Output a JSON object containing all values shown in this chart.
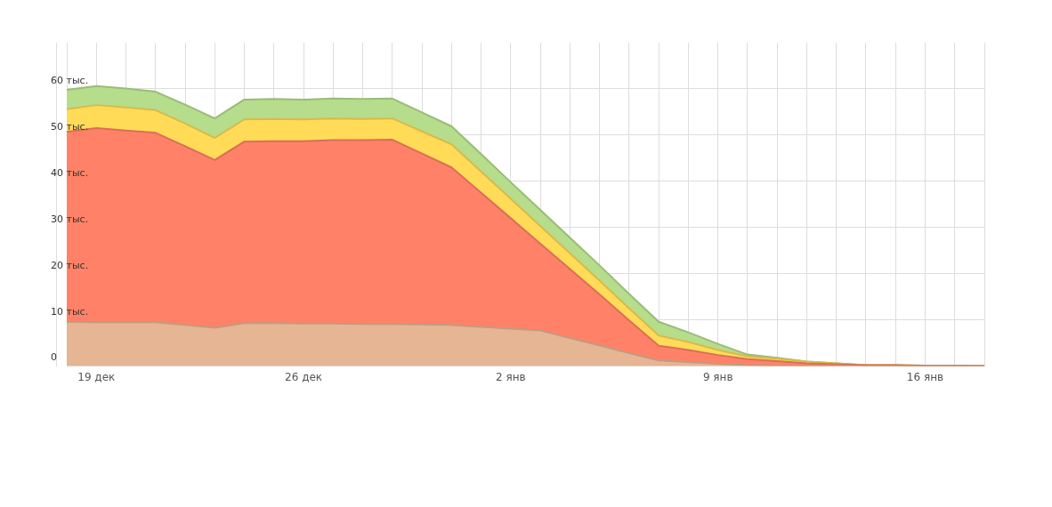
{
  "chart_data": {
    "type": "area",
    "stacked": true,
    "grid": true,
    "categories": [
      null,
      "19 дек",
      null,
      null,
      null,
      null,
      null,
      null,
      "26 дек",
      null,
      null,
      null,
      null,
      null,
      null,
      "2 янв",
      null,
      null,
      null,
      null,
      null,
      null,
      "9 янв",
      null,
      null,
      null,
      null,
      null,
      null,
      "16 янв",
      null,
      null
    ],
    "series": [
      {
        "color": "#e5b594",
        "values": [
          9.6,
          9.5,
          9.5,
          9.5,
          8.9,
          8.3,
          9.3,
          9.3,
          9.2,
          9.2,
          9.1,
          9.1,
          9.0,
          8.9,
          8.5,
          8.1,
          7.7,
          6.1,
          4.5,
          2.8,
          1.2,
          0.9,
          0.5,
          0.2,
          0.1,
          0,
          0,
          0,
          0,
          0,
          0,
          0
        ]
      },
      {
        "color": "#ff8268",
        "values": [
          41.1,
          42.0,
          41.5,
          41.0,
          38.7,
          36.3,
          39.3,
          39.4,
          39.5,
          39.7,
          39.8,
          39.9,
          37.0,
          34.1,
          29.0,
          23.9,
          18.8,
          14.9,
          11.0,
          7.1,
          3.2,
          2.6,
          1.9,
          1.3,
          1.0,
          0.6,
          0.4,
          0.2,
          0.2,
          0.1,
          0.1,
          0
        ]
      },
      {
        "color": "#ffdb57",
        "values": [
          4.9,
          5.0,
          5.0,
          4.9,
          4.9,
          4.8,
          4.8,
          4.8,
          4.7,
          4.7,
          4.6,
          4.6,
          4.8,
          5.0,
          4.6,
          4.2,
          3.8,
          3.4,
          3.0,
          2.6,
          2.2,
          1.7,
          1.1,
          0.6,
          0.5,
          0.4,
          0.2,
          0,
          0,
          0,
          0,
          0
        ]
      },
      {
        "color": "#b5dd8c",
        "values": [
          4.2,
          4.1,
          4.1,
          4.0,
          4.1,
          4.2,
          4.3,
          4.3,
          4.3,
          4.3,
          4.3,
          4.3,
          4.1,
          3.9,
          3.8,
          3.6,
          3.5,
          3.4,
          3.3,
          3.1,
          3.0,
          2.1,
          1.3,
          0.4,
          0.2,
          0,
          0,
          0,
          0,
          0,
          0,
          0
        ]
      }
    ],
    "ylim": [
      0,
      70
    ],
    "yticks": [
      0,
      {
        "value": 10,
        "label": "10 тыс."
      },
      {
        "value": 20,
        "label": "20 тыс."
      },
      {
        "value": 30,
        "label": "30 тыс."
      },
      {
        "value": 40,
        "label": "40 тыс."
      },
      {
        "value": 50,
        "label": "50 тыс."
      },
      {
        "value": 60,
        "label": "60 тыс."
      }
    ]
  }
}
